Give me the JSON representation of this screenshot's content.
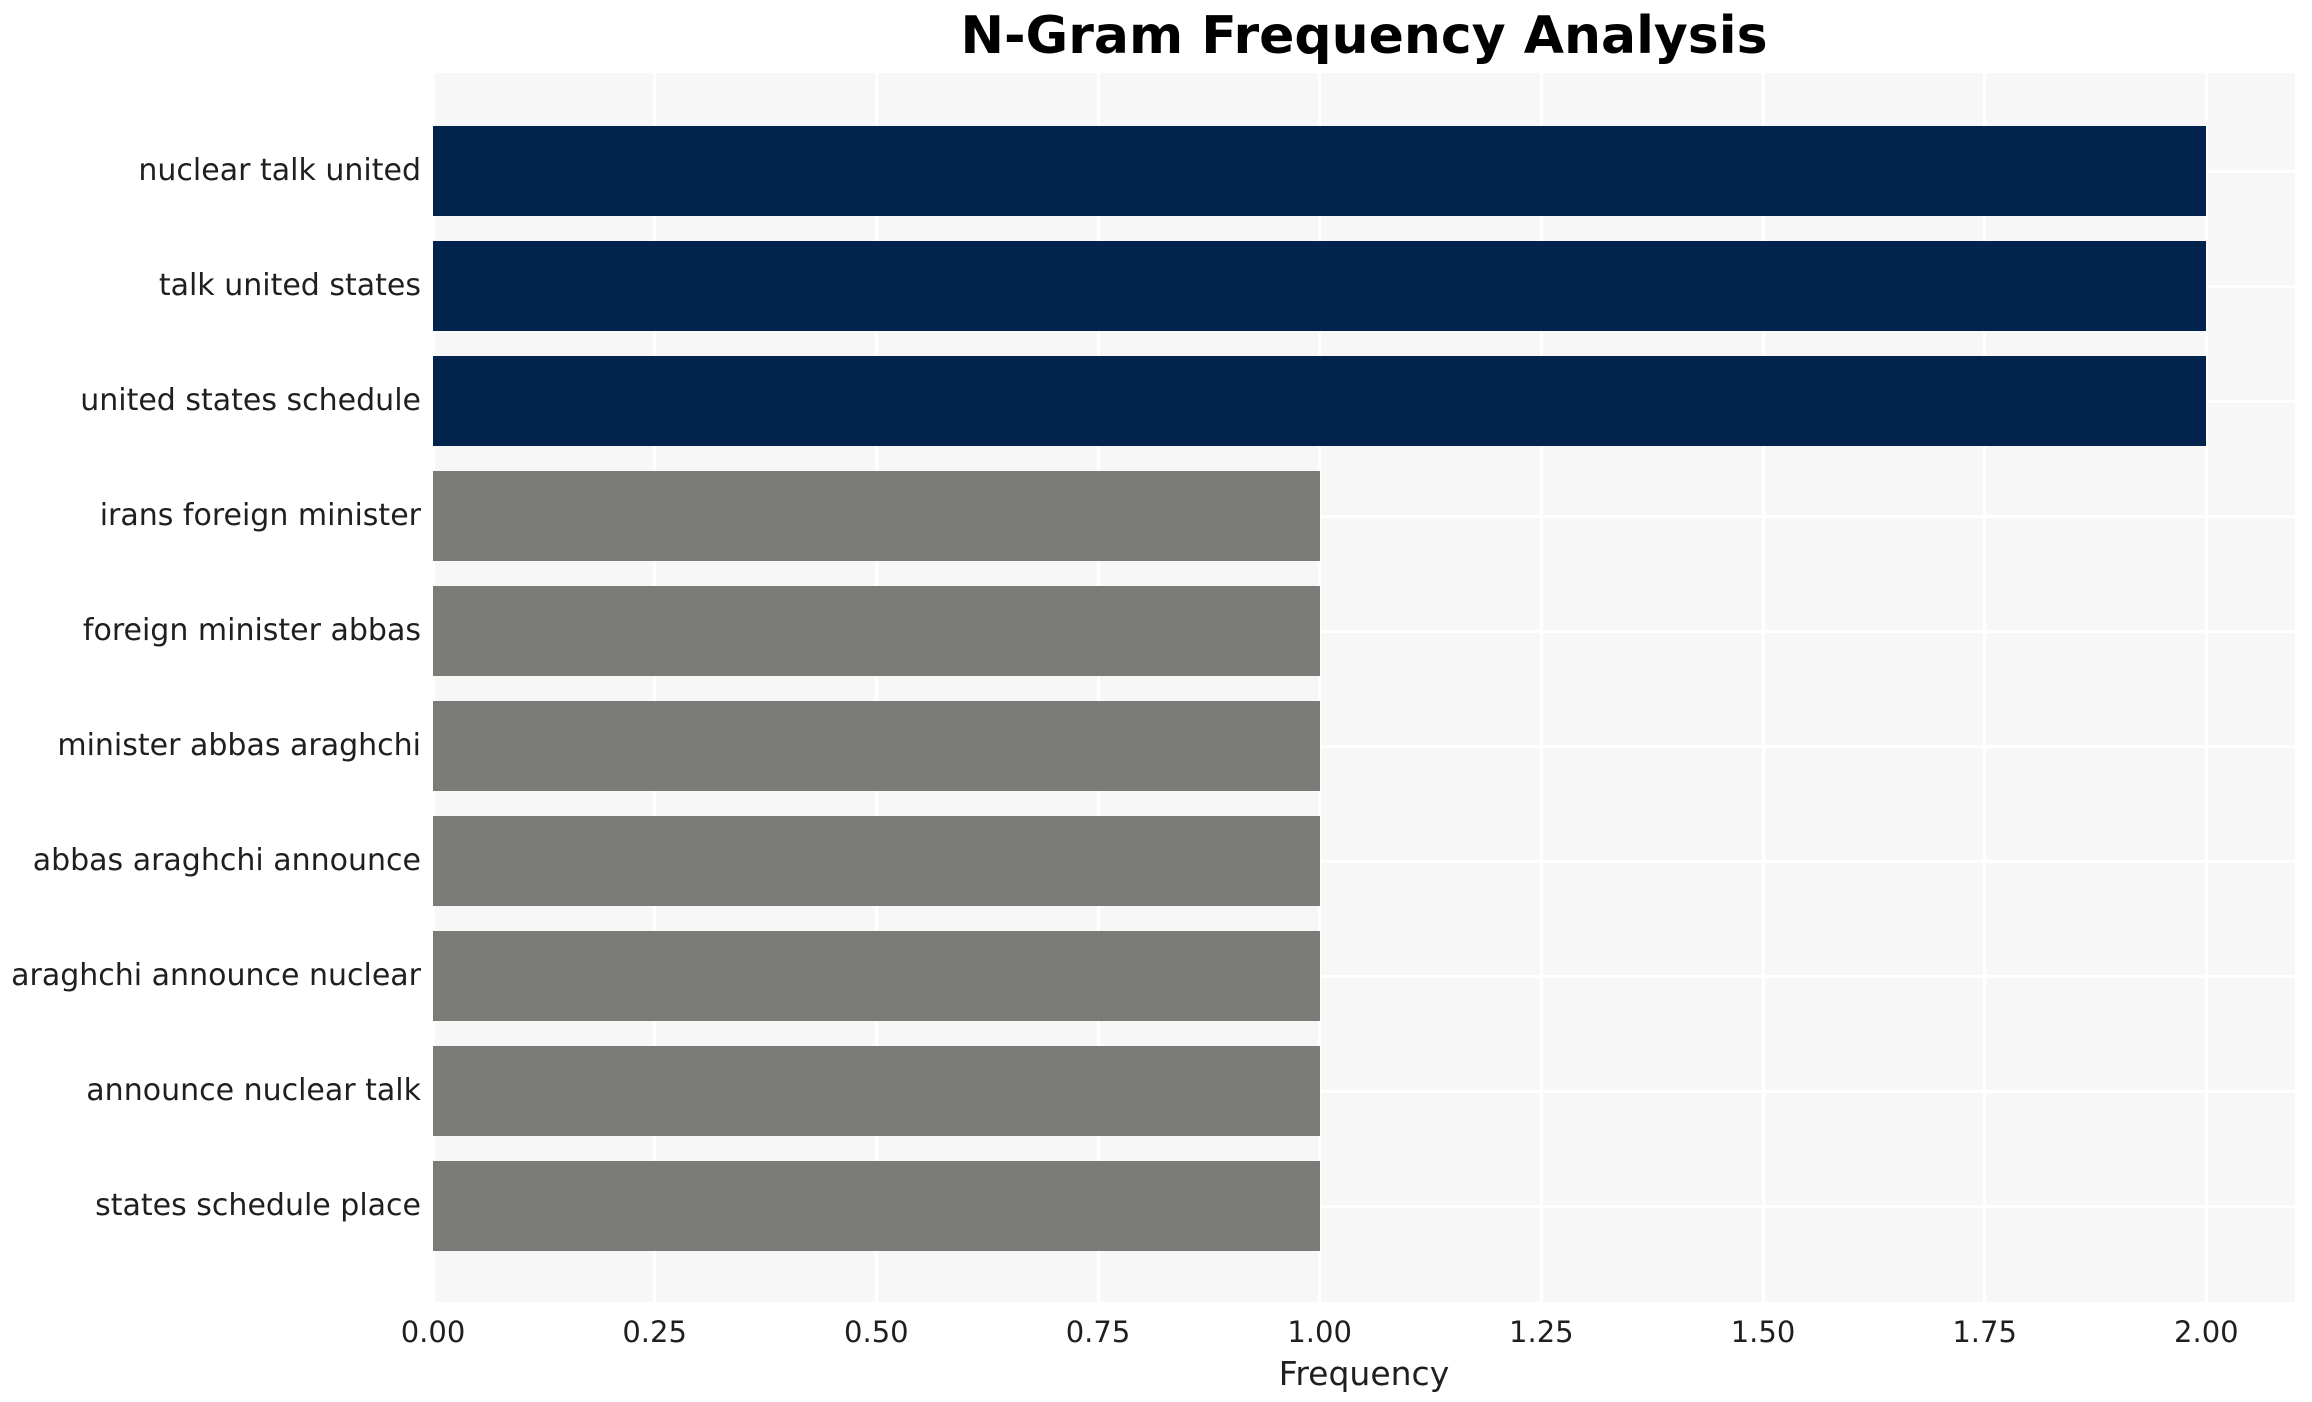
{
  "chart_data": {
    "type": "bar",
    "orientation": "horizontal",
    "title": "N-Gram Frequency Analysis",
    "xlabel": "Frequency",
    "ylabel": "",
    "categories": [
      "nuclear talk united",
      "talk united states",
      "united states schedule",
      "irans foreign minister",
      "foreign minister abbas",
      "minister abbas araghchi",
      "abbas araghchi announce",
      "araghchi announce nuclear",
      "announce nuclear talk",
      "states schedule place"
    ],
    "values": [
      2,
      2,
      2,
      1,
      1,
      1,
      1,
      1,
      1,
      1
    ],
    "bar_colors": [
      "#01234d",
      "#01234d",
      "#01234d",
      "#7b7b78",
      "#7b7b78",
      "#7b7b78",
      "#7b7b78",
      "#7b7b78",
      "#7b7b78",
      "#7b7b78"
    ],
    "xlim": [
      0,
      2.1
    ],
    "xtick_values": [
      0,
      0.25,
      0.5,
      0.75,
      1.0,
      1.25,
      1.5,
      1.75,
      2.0
    ],
    "xtick_labels": [
      "0.00",
      "0.25",
      "0.50",
      "0.75",
      "1.00",
      "1.25",
      "1.50",
      "1.75",
      "2.00"
    ],
    "grid": true,
    "legend_position": "none"
  },
  "colors": {
    "bar_high": "#01234d",
    "bar_low": "#7b7b78",
    "plot_background": "#f7f7f7",
    "gridline": "#ffffff",
    "tick_text": "#1f1f1f",
    "title_text": "#000000",
    "page_background": "#ffffff"
  }
}
